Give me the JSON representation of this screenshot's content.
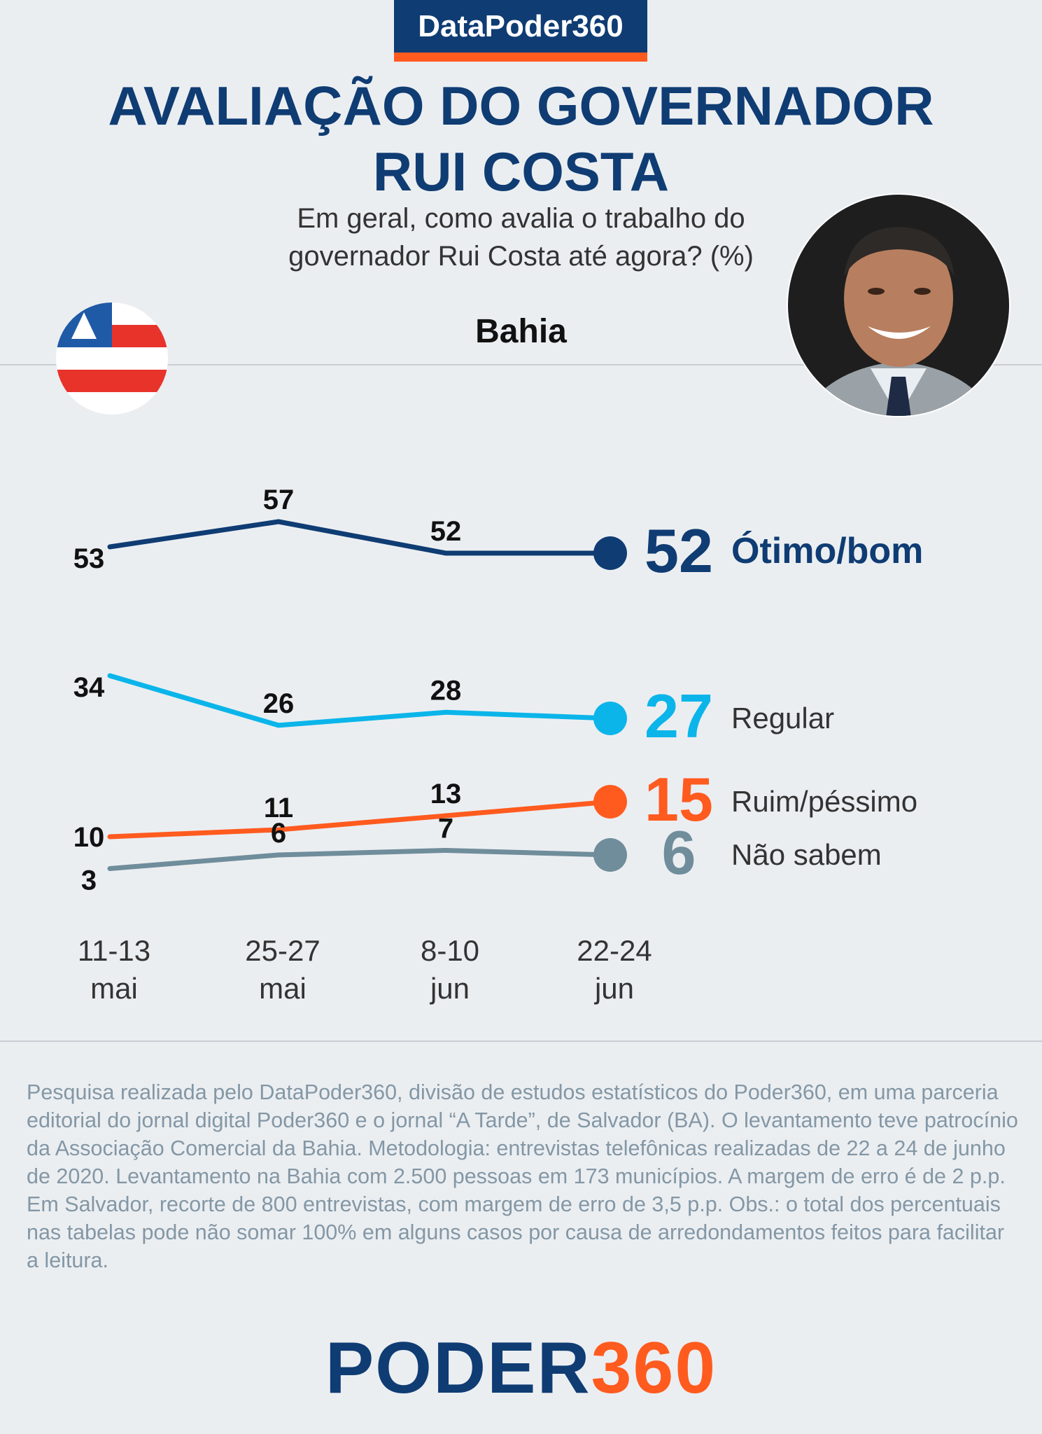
{
  "header": {
    "brand": "DataPoder360",
    "title_line1": "AVALIAÇÃO DO GOVERNADOR",
    "title_line2": "RUI COSTA",
    "question_line1": "Em geral, como avalia o trabalho do",
    "question_line2": "governador Rui Costa até agora? (%)",
    "region": "Bahia"
  },
  "colors": {
    "brand_blue": "#0f3c73",
    "brand_orange": "#ff5b1f",
    "otimo_bom": "#0f3c73",
    "regular": "#0bb5ea",
    "ruim_pessimo": "#ff5b1f",
    "nao_sabem": "#6f8d9b"
  },
  "chart_data": {
    "type": "line",
    "categories": [
      "11-13 mai",
      "25-27 mai",
      "8-10 jun",
      "22-24 jun"
    ],
    "category_lines": [
      [
        "11-13",
        "mai"
      ],
      [
        "25-27",
        "mai"
      ],
      [
        "8-10",
        "jun"
      ],
      [
        "22-24",
        "jun"
      ]
    ],
    "ylim": [
      0,
      60
    ],
    "grid": false,
    "legend": "right",
    "series": [
      {
        "name": "Ótimo/bom",
        "color": "#0f3c73",
        "values": [
          53,
          57,
          52,
          52
        ],
        "label_pos": [
          "below",
          "above",
          "above",
          "none"
        ],
        "name_bold": true
      },
      {
        "name": "Regular",
        "color": "#0bb5ea",
        "values": [
          34,
          26,
          28,
          27
        ],
        "label_pos": [
          "below",
          "above",
          "above",
          "none"
        ],
        "name_bold": false
      },
      {
        "name": "Ruim/péssimo",
        "color": "#ff5b1f",
        "values": [
          10,
          11,
          13,
          15
        ],
        "label_pos": [
          "left",
          "above",
          "above",
          "none"
        ],
        "name_bold": false
      },
      {
        "name": "Não sabem",
        "color": "#6f8d9b",
        "values": [
          3,
          6,
          7,
          6
        ],
        "label_pos": [
          "below",
          "above",
          "above",
          "none"
        ],
        "name_bold": false
      }
    ]
  },
  "footnote": "Pesquisa realizada pelo DataPoder360, divisão de estudos estatísticos do Poder360, em uma parceria editorial do jornal digital Poder360 e o jornal “A Tarde”, de Salvador (BA). O levantamento teve patrocínio da Associação Comercial da Bahia. Metodologia: entrevistas telefônicas realizadas de 22 a 24 de junho de 2020. Levantamento na Bahia com 2.500 pessoas em 173 municípios. A margem de erro é de 2 p.p. Em Salvador, recorte de 800 entrevistas, com margem de erro de 3,5 p.p. Obs.: o total dos percentuais nas tabelas pode não somar 100% em alguns casos por causa de arredondamentos feitos para facilitar a leitura.",
  "logo": {
    "part1": "PODER",
    "part2": "360"
  }
}
